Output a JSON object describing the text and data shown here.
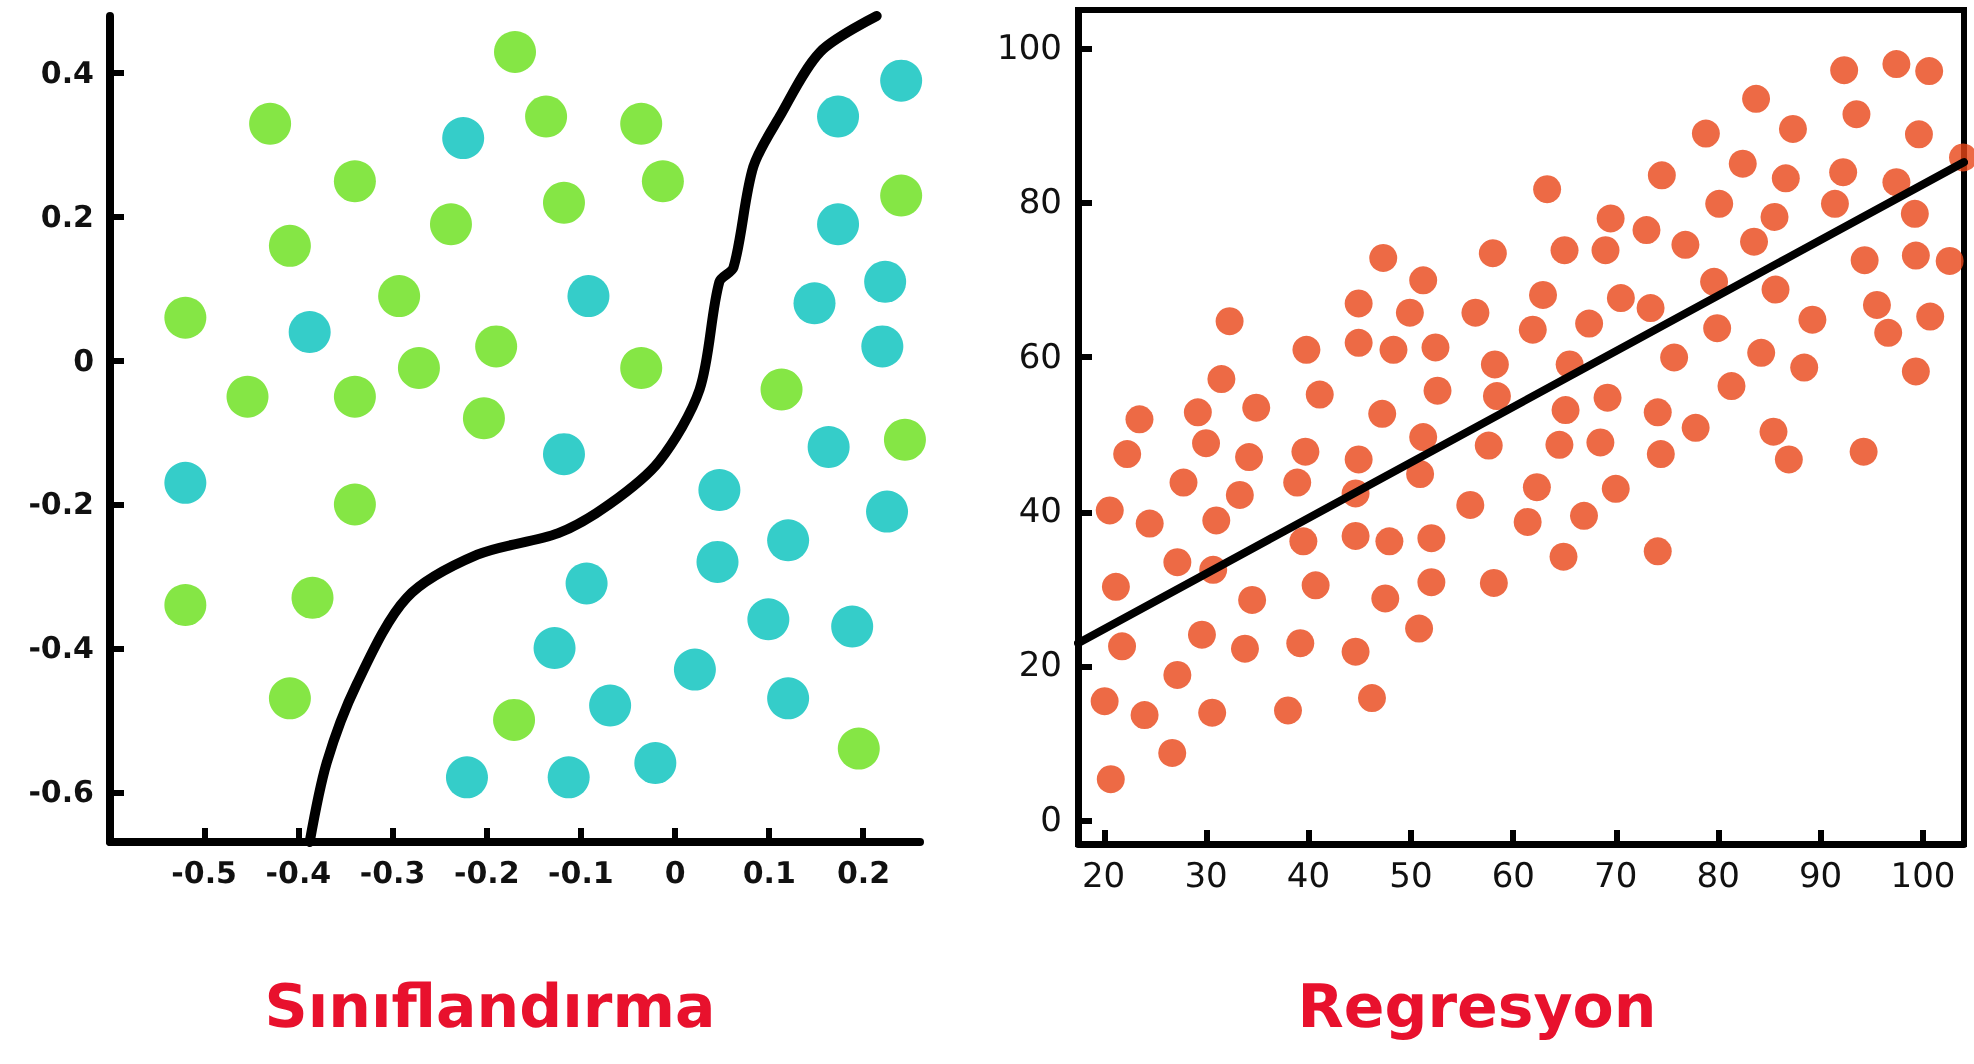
{
  "chart_data": [
    {
      "type": "scatter",
      "title": "Sınıflandırma",
      "marker": "circle",
      "grid": false,
      "xlim": [
        -0.6,
        0.26
      ],
      "ylim": [
        -0.67,
        0.48
      ],
      "xticks": [
        -0.5,
        -0.4,
        -0.3,
        -0.2,
        -0.1,
        0,
        0.1,
        0.2
      ],
      "yticks": [
        -0.6,
        -0.4,
        -0.2,
        0,
        0.2,
        0.4
      ],
      "series": [
        {
          "color": "#66e016",
          "x": [
            -0.17,
            -0.43,
            -0.137,
            -0.036,
            -0.34,
            -0.013,
            -0.118,
            -0.238,
            -0.409,
            -0.293,
            -0.52,
            -0.19,
            -0.272,
            -0.036,
            -0.454,
            -0.34,
            -0.203,
            0.113,
            0.24,
            0.244,
            -0.34,
            -0.52,
            -0.385,
            -0.409,
            -0.171,
            0.195
          ],
          "values": [
            0.43,
            0.33,
            0.34,
            0.33,
            0.25,
            0.25,
            0.22,
            0.19,
            0.16,
            0.09,
            0.06,
            0.02,
            -0.01,
            -0.01,
            -0.05,
            -0.05,
            -0.08,
            -0.04,
            0.23,
            -0.11,
            -0.2,
            -0.34,
            -0.33,
            -0.47,
            -0.5,
            -0.54
          ]
        },
        {
          "color": "#03c0bb",
          "x": [
            -0.225,
            0.173,
            0.24,
            0.173,
            -0.092,
            -0.388,
            0.223,
            0.148,
            0.22,
            -0.118,
            0.163,
            -0.52,
            0.047,
            0.225,
            0.12,
            0.045,
            -0.094,
            0.099,
            0.188,
            -0.128,
            0.021,
            -0.069,
            0.12,
            -0.221,
            -0.113,
            -0.021
          ],
          "values": [
            0.31,
            0.34,
            0.39,
            0.19,
            0.09,
            0.04,
            0.11,
            0.08,
            0.02,
            -0.13,
            -0.12,
            -0.17,
            -0.18,
            -0.21,
            -0.25,
            -0.28,
            -0.31,
            -0.36,
            -0.37,
            -0.4,
            -0.43,
            -0.48,
            -0.47,
            -0.58,
            -0.58,
            -0.56
          ]
        },
        {
          "type": "line",
          "color": "#000000",
          "marker": "none",
          "line_style": "solid",
          "x": [
            -0.388,
            -0.37,
            -0.338,
            -0.285,
            -0.21,
            -0.124,
            -0.07,
            -0.017,
            0.026,
            0.047,
            0.062,
            0.083,
            0.111,
            0.154,
            0.214
          ],
          "values": [
            -0.67,
            -0.56,
            -0.45,
            -0.33,
            -0.27,
            -0.24,
            -0.2,
            -0.14,
            -0.04,
            0.11,
            0.13,
            0.27,
            0.34,
            0.43,
            0.48
          ]
        }
      ]
    },
    {
      "type": "scatter",
      "title": "Regresyon",
      "marker": "circle",
      "grid": false,
      "xlim": [
        17.5,
        104
      ],
      "ylim": [
        -3,
        105
      ],
      "xticks": [
        20,
        30,
        40,
        50,
        60,
        70,
        80,
        90,
        100
      ],
      "yticks": [
        0,
        20,
        40,
        60,
        80,
        100
      ],
      "series": [
        {
          "color": "#e84516",
          "x": [
            22.3,
            23.5,
            29.2,
            30.0,
            31.5,
            32.3,
            34.2,
            34.9,
            39.8,
            39.7,
            41.1,
            44.9,
            44.9,
            44.9,
            47.3,
            47.2,
            48.3,
            49.9,
            51.2,
            51.2,
            52.4,
            52.6,
            56.3,
            57.6,
            58.0,
            58.2,
            58.4,
            61.9,
            62.9,
            63.3,
            64.5,
            65.0,
            65.1,
            65.5,
            67.4,
            68.5,
            69.0,
            69.5,
            69.2,
            70.5,
            73.0,
            73.4,
            74.1,
            74.5,
            74.4,
            75.7,
            76.8,
            77.8,
            78.8,
            79.6,
            80.1,
            79.9,
            81.3,
            82.4,
            83.5,
            83.7,
            84.2,
            85.4,
            85.5,
            85.6,
            86.6,
            86.9,
            87.3,
            89.2,
            88.4,
            91.4,
            92.2,
            92.3,
            93.5,
            94.2,
            94.3,
            95.5,
            96.6,
            97.4,
            97.4,
            99.2,
            99.3,
            99.3,
            99.6,
            100.6,
            100.7,
            102.6,
            103.9,
            20.6,
            27.8,
            33.3,
            38.9,
            44.6,
            50.9,
            55.8,
            62.3,
            70.0,
            24.5,
            31.0,
            39.5,
            44.6,
            47.9,
            52.0,
            61.4,
            66.9,
            27.2,
            30.7,
            21.2,
            34.5,
            40.7,
            47.5,
            52.0,
            58.1,
            64.9,
            74.1,
            50.8,
            29.6,
            21.8,
            33.8,
            39.2,
            44.6,
            27.2,
            20.1,
            24.0,
            30.6,
            38.0,
            46.2,
            26.7,
            20.7
          ],
          "values": [
            47.5,
            52.0,
            52.9,
            48.9,
            57.2,
            64.7,
            47.1,
            53.5,
            61.0,
            47.8,
            55.2,
            67.0,
            61.9,
            46.8,
            72.9,
            52.7,
            61.0,
            65.8,
            70.0,
            49.7,
            61.3,
            55.7,
            65.8,
            48.6,
            73.5,
            59.1,
            55.0,
            63.6,
            68.1,
            81.8,
            48.7,
            73.9,
            53.2,
            59.1,
            64.4,
            49.0,
            73.9,
            78.0,
            54.8,
            67.7,
            76.5,
            66.4,
            52.9,
            83.6,
            47.5,
            60.0,
            74.6,
            50.9,
            89.0,
            69.8,
            79.9,
            63.8,
            56.3,
            85.1,
            75.0,
            93.5,
            60.6,
            50.4,
            78.2,
            68.8,
            83.2,
            46.8,
            89.6,
            64.9,
            58.7,
            79.9,
            84.0,
            97.2,
            91.5,
            47.8,
            72.6,
            66.8,
            63.2,
            98.0,
            82.7,
            78.6,
            58.2,
            73.2,
            88.9,
            97.1,
            65.3,
            72.5,
            85.9,
            40.2,
            43.8,
            42.2,
            43.8,
            42.4,
            44.9,
            40.9,
            43.2,
            43.0,
            38.5,
            38.9,
            36.2,
            36.9,
            36.2,
            36.6,
            38.7,
            39.5,
            33.5,
            32.5,
            30.3,
            28.6,
            30.5,
            28.8,
            30.9,
            30.8,
            34.2,
            34.9,
            24.9,
            24.1,
            22.6,
            22.3,
            23.0,
            21.9,
            18.9,
            15.5,
            13.7,
            14.0,
            14.3,
            15.9,
            8.8,
            5.4
          ]
        },
        {
          "type": "line",
          "color": "#000000",
          "marker": "none",
          "line_style": "solid",
          "x": [
            17.5,
            104
          ],
          "values": [
            23.0,
            85.3
          ]
        }
      ]
    }
  ]
}
